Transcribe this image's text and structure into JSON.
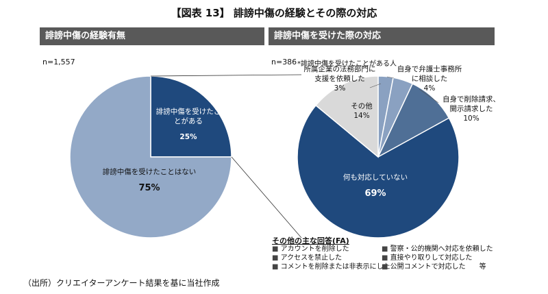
{
  "title": "【図表 13】 誹謗中傷の経験とその際の対応",
  "left_panel": {
    "header": "誹謗中傷の経験有無",
    "n": "n=1,557"
  },
  "right_panel": {
    "header": "誹謗中傷を受けた際の対応",
    "n": "n=386",
    "subtitle": "*誹謗中傷を受けたことがある人"
  },
  "other_responses": {
    "heading": "その他の主な回答(FA)",
    "items": [
      "アカウントを削除した",
      "アクセスを禁止した",
      "コメントを削除または非表示にした",
      "警察・公的機関へ対応を依頼した",
      "直接やり取りして対応した",
      "公開コメントで対応した　　等"
    ]
  },
  "source": "（出所）クリエイターアンケート結果を基に当社作成",
  "colors": {
    "dark_blue": "#1f497d",
    "mid_blue": "#4f6f96",
    "light_blue": "#8aa1c1",
    "gray_blue": "#93a9c7",
    "light_gray": "#d9d9d9"
  },
  "chart_data": [
    {
      "type": "pie",
      "categories": [
        "誹謗中傷を受けたことがある",
        "誹謗中傷を受けたことはない"
      ],
      "values": [
        25,
        75
      ],
      "labels": [
        "25%",
        "75%"
      ],
      "category_labels": [
        "誹謗中傷を受け\nたことがある",
        "誹謗中傷を受けたことはない"
      ],
      "colors": [
        "#1f497d",
        "#93a9c7"
      ]
    },
    {
      "type": "pie",
      "categories": [
        "所属企業の法務部門に支援を依頼した",
        "自身で弁護士事務所に相談した",
        "自身で削除請求、開示請求した",
        "何も対応していない",
        "その他"
      ],
      "values": [
        3,
        4,
        10,
        69,
        14
      ],
      "labels": [
        "3%",
        "4%",
        "10%",
        "69%",
        "14%"
      ],
      "category_labels": [
        "所属企業の法務部門に\n支援を依頼した",
        "自身で弁護士事務所\nに相談した",
        "自身で削除請求、\n開示請求した",
        "何も対応していない",
        "その他"
      ],
      "colors": [
        "#8aa1c1",
        "#8aa1c1",
        "#4f6f96",
        "#1f497d",
        "#d9d9d9"
      ]
    }
  ]
}
